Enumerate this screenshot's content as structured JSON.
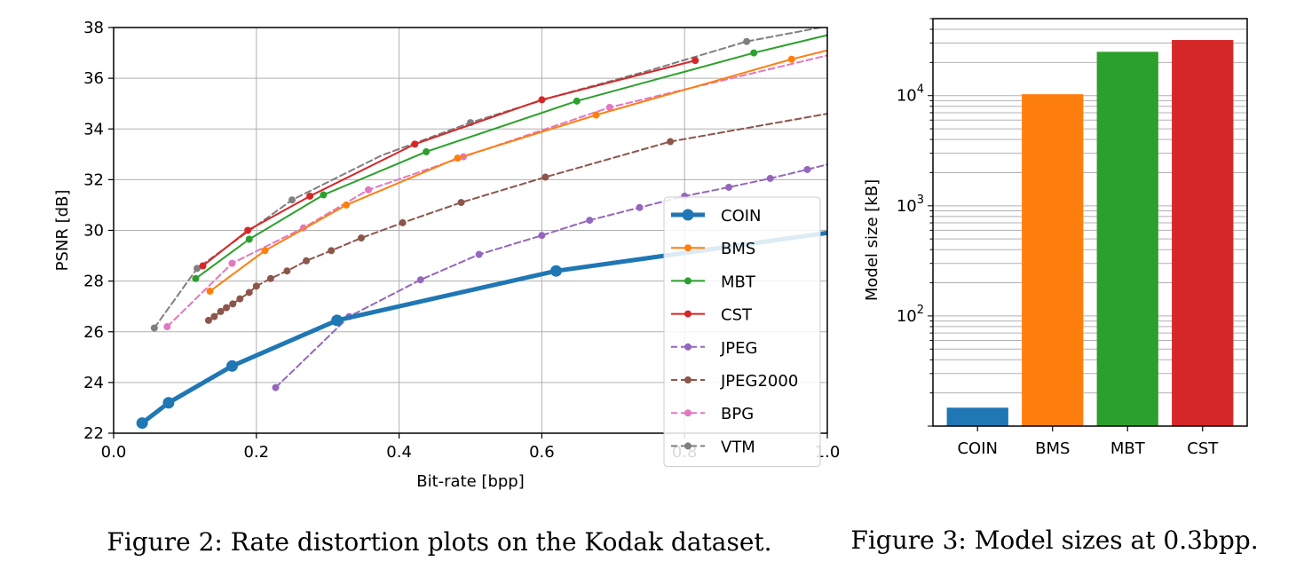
{
  "chart_data": [
    {
      "type": "line",
      "caption": "Figure 2: Rate distortion plots on the Kodak dataset.",
      "title": "",
      "xlabel": "Bit-rate [bpp]",
      "ylabel": "PSNR [dB]",
      "xlim": [
        0.0,
        1.0
      ],
      "ylim": [
        22,
        38
      ],
      "xticks": [
        "0.0",
        "0.2",
        "0.4",
        "0.6",
        "0.8",
        "1.0"
      ],
      "yticks": [
        "22",
        "24",
        "26",
        "28",
        "30",
        "32",
        "34",
        "36",
        "38"
      ],
      "grid": true,
      "legend_position": "center-right",
      "series": [
        {
          "name": "COIN",
          "color": "#1f77b4",
          "dashed": false,
          "bold": true,
          "x": [
            0.04,
            0.077,
            0.166,
            0.313,
            0.62,
            1.0
          ],
          "y": [
            22.4,
            23.2,
            24.65,
            26.45,
            28.4,
            29.9
          ],
          "markers": [
            true,
            true,
            true,
            true,
            true,
            false
          ]
        },
        {
          "name": "BMS",
          "color": "#ff7f0e",
          "dashed": false,
          "bold": false,
          "x": [
            0.135,
            0.212,
            0.326,
            0.482,
            0.676,
            0.95,
            1.0
          ],
          "y": [
            27.6,
            29.2,
            31.0,
            32.85,
            34.55,
            36.75,
            37.1
          ],
          "markers": [
            true,
            true,
            true,
            true,
            true,
            true,
            false
          ]
        },
        {
          "name": "MBT",
          "color": "#2ca02c",
          "dashed": false,
          "bold": false,
          "x": [
            0.115,
            0.19,
            0.294,
            0.438,
            0.649,
            0.897,
            1.0
          ],
          "y": [
            28.1,
            29.65,
            31.4,
            33.1,
            35.1,
            37.0,
            37.7
          ],
          "markers": [
            true,
            true,
            true,
            true,
            true,
            true,
            false
          ]
        },
        {
          "name": "CST",
          "color": "#d62728",
          "dashed": false,
          "bold": false,
          "x": [
            0.125,
            0.188,
            0.275,
            0.422,
            0.6,
            0.815
          ],
          "y": [
            28.6,
            30.0,
            31.35,
            33.4,
            35.15,
            36.7
          ],
          "markers": [
            true,
            true,
            true,
            true,
            true,
            true
          ]
        },
        {
          "name": "JPEG",
          "color": "#9467bd",
          "dashed": true,
          "bold": false,
          "x": [
            0.227,
            0.33,
            0.43,
            0.512,
            0.6,
            0.667,
            0.737,
            0.8,
            0.862,
            0.92,
            0.972,
            1.0
          ],
          "y": [
            23.8,
            26.6,
            28.05,
            29.05,
            29.8,
            30.4,
            30.9,
            31.35,
            31.7,
            32.05,
            32.4,
            32.6
          ],
          "markers": [
            true,
            true,
            true,
            true,
            true,
            true,
            true,
            true,
            true,
            true,
            true,
            false
          ]
        },
        {
          "name": "JPEG2000",
          "color": "#8c564b",
          "dashed": true,
          "bold": false,
          "x": [
            0.133,
            0.141,
            0.15,
            0.158,
            0.167,
            0.177,
            0.19,
            0.2,
            0.22,
            0.243,
            0.27,
            0.305,
            0.347,
            0.405,
            0.487,
            0.605,
            0.78,
            1.0
          ],
          "y": [
            26.45,
            26.6,
            26.8,
            26.95,
            27.1,
            27.3,
            27.55,
            27.8,
            28.1,
            28.4,
            28.8,
            29.2,
            29.7,
            30.3,
            31.1,
            32.1,
            33.5,
            34.6
          ],
          "markers": [
            true,
            true,
            true,
            true,
            true,
            true,
            true,
            true,
            true,
            true,
            true,
            true,
            true,
            true,
            true,
            true,
            true,
            false
          ]
        },
        {
          "name": "BPG",
          "color": "#e377c2",
          "dashed": true,
          "bold": false,
          "x": [
            0.075,
            0.166,
            0.266,
            0.357,
            0.49,
            0.695,
            1.0
          ],
          "y": [
            26.2,
            28.7,
            30.1,
            31.6,
            32.9,
            34.85,
            36.9
          ],
          "markers": [
            true,
            true,
            true,
            true,
            true,
            true,
            false
          ]
        },
        {
          "name": "VTM",
          "color": "#7f7f7f",
          "dashed": true,
          "bold": false,
          "x": [
            0.057,
            0.117,
            0.25,
            0.375,
            0.5,
            0.62,
            0.75,
            0.887,
            1.0
          ],
          "y": [
            26.15,
            28.5,
            31.2,
            32.95,
            34.25,
            35.3,
            36.3,
            37.45,
            38.05
          ],
          "markers": [
            true,
            true,
            true,
            false,
            true,
            false,
            false,
            true,
            false
          ]
        }
      ]
    },
    {
      "type": "bar",
      "caption": "Figure 3: Model sizes at 0.3bpp.",
      "title": "",
      "xlabel": "",
      "ylabel": "Model size [kB]",
      "yscale": "log",
      "ylim": [
        10,
        50000
      ],
      "yticks": [
        {
          "base": "10",
          "exp": "2",
          "value": 100
        },
        {
          "base": "10",
          "exp": "3",
          "value": 1000
        },
        {
          "base": "10",
          "exp": "4",
          "value": 10000
        }
      ],
      "grid": true,
      "categories": [
        "COIN",
        "BMS",
        "MBT",
        "CST"
      ],
      "values": [
        14.7,
        10300,
        25000,
        32000
      ],
      "colors": [
        "#1f77b4",
        "#ff7f0e",
        "#2ca02c",
        "#d62728"
      ]
    }
  ]
}
